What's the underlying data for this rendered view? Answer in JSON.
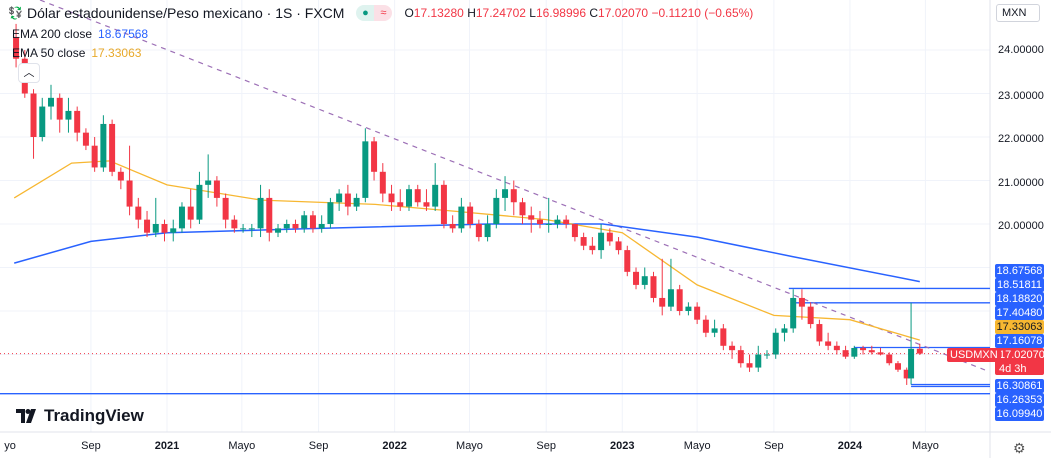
{
  "header": {
    "title": "Dólar estadounidense/Peso mexicano · 1S · FXCM",
    "ohlc": {
      "o_label": "O",
      "o": "17.13280",
      "h_label": "H",
      "h": "17.24702",
      "l_label": "L",
      "l": "16.98996",
      "c_label": "C",
      "c": "17.02070",
      "change": "−0.11210 (−0.65%)"
    },
    "indicators": [
      {
        "label": "EMA 200 close",
        "value": "18.67568",
        "color": "#2962ff"
      },
      {
        "label": "EMA 50 close",
        "value": "17.33063",
        "color": "#f7b731"
      }
    ],
    "currency_button": "MXN",
    "collapse_icon": "chevron-up-icon"
  },
  "price_axis": {
    "ticks": [
      "24.00000",
      "23.00000",
      "22.00000",
      "21.00000",
      "20.00000"
    ],
    "labels": [
      {
        "text": "18.67568",
        "color": "#2962ff"
      },
      {
        "text": "18.51811",
        "color": "#2962ff"
      },
      {
        "text": "18.18820",
        "color": "#2962ff"
      },
      {
        "text": "17.40480",
        "color": "#2962ff"
      },
      {
        "text": "17.33063",
        "color": "#f7b731"
      },
      {
        "text": "17.16078",
        "color": "#2962ff"
      },
      {
        "text": "17.02070",
        "color": "#f23645"
      },
      {
        "text": "16.30861",
        "color": "#2962ff"
      },
      {
        "text": "16.26353",
        "color": "#2962ff"
      },
      {
        "text": "16.09940",
        "color": "#2962ff"
      }
    ],
    "countdown": "4d 3h",
    "symbol_label": "USDMXN"
  },
  "time_axis": [
    {
      "text": "yo",
      "year": false
    },
    {
      "text": "Sep",
      "year": false
    },
    {
      "text": "2021",
      "year": true
    },
    {
      "text": "Mayo",
      "year": false
    },
    {
      "text": "Sep",
      "year": false
    },
    {
      "text": "2022",
      "year": true
    },
    {
      "text": "Mayo",
      "year": false
    },
    {
      "text": "Sep",
      "year": false
    },
    {
      "text": "2023",
      "year": true
    },
    {
      "text": "Mayo",
      "year": false
    },
    {
      "text": "Sep",
      "year": false
    },
    {
      "text": "2024",
      "year": true
    },
    {
      "text": "Mayo",
      "year": false
    }
  ],
  "branding": "TradingView",
  "chart_data": {
    "type": "candlestick",
    "symbol": "USDMXN",
    "interval": "1S",
    "colors": {
      "up": "#089981",
      "down": "#f23645",
      "ema200": "#2962ff",
      "ema50": "#f7b731",
      "levels": "#2962ff",
      "trendline": "#9c6fb6"
    },
    "ylim": [
      16.0,
      24.5
    ],
    "candles": [
      [
        "2020-05-04",
        24.3,
        24.6,
        23.6,
        23.8
      ],
      [
        "2020-05-18",
        23.8,
        24.0,
        22.9,
        23.0
      ],
      [
        "2020-06-01",
        23.0,
        23.1,
        21.5,
        22.0
      ],
      [
        "2020-06-15",
        22.0,
        22.9,
        21.9,
        22.7
      ],
      [
        "2020-06-29",
        22.7,
        23.2,
        22.4,
        22.9
      ],
      [
        "2020-07-13",
        22.9,
        23.0,
        22.1,
        22.4
      ],
      [
        "2020-07-27",
        22.4,
        22.9,
        22.1,
        22.6
      ],
      [
        "2020-08-10",
        22.6,
        22.7,
        21.9,
        22.1
      ],
      [
        "2020-08-24",
        22.1,
        22.2,
        21.7,
        21.8
      ],
      [
        "2020-09-07",
        21.8,
        22.0,
        21.2,
        21.3
      ],
      [
        "2020-09-21",
        21.3,
        22.5,
        21.2,
        22.3
      ],
      [
        "2020-10-05",
        22.3,
        22.4,
        21.1,
        21.2
      ],
      [
        "2020-10-19",
        21.2,
        21.3,
        20.8,
        21.0
      ],
      [
        "2020-11-02",
        21.0,
        21.8,
        20.2,
        20.4
      ],
      [
        "2020-11-16",
        20.4,
        20.6,
        19.9,
        20.1
      ],
      [
        "2020-11-30",
        20.1,
        20.3,
        19.7,
        19.8
      ],
      [
        "2020-12-14",
        19.8,
        20.6,
        19.7,
        20.0
      ],
      [
        "2020-12-28",
        20.0,
        20.1,
        19.6,
        19.8
      ],
      [
        "2021-01-11",
        19.8,
        20.1,
        19.6,
        19.9
      ],
      [
        "2021-01-25",
        19.9,
        20.5,
        19.8,
        20.4
      ],
      [
        "2021-02-08",
        20.4,
        20.8,
        19.9,
        20.1
      ],
      [
        "2021-02-22",
        20.1,
        21.2,
        20.0,
        20.9
      ],
      [
        "2021-03-08",
        20.9,
        21.6,
        20.6,
        21.0
      ],
      [
        "2021-03-22",
        21.0,
        21.1,
        20.4,
        20.6
      ],
      [
        "2021-04-05",
        20.6,
        20.7,
        19.9,
        20.1
      ],
      [
        "2021-04-19",
        20.1,
        20.2,
        19.8,
        19.9
      ],
      [
        "2021-05-03",
        19.9,
        20.0,
        19.8,
        19.9
      ],
      [
        "2021-05-17",
        19.9,
        20.0,
        19.7,
        19.9
      ],
      [
        "2021-05-31",
        19.9,
        20.9,
        19.7,
        20.6
      ],
      [
        "2021-06-14",
        20.6,
        20.8,
        19.6,
        19.8
      ],
      [
        "2021-06-28",
        19.8,
        20.0,
        19.7,
        19.9
      ],
      [
        "2021-07-12",
        19.9,
        20.1,
        19.8,
        20.0
      ],
      [
        "2021-07-26",
        20.0,
        20.1,
        19.8,
        19.9
      ],
      [
        "2021-08-09",
        19.9,
        20.3,
        19.8,
        20.2
      ],
      [
        "2021-08-23",
        20.2,
        20.3,
        19.8,
        19.9
      ],
      [
        "2021-09-06",
        19.9,
        20.2,
        19.8,
        20.0
      ],
      [
        "2021-09-20",
        20.0,
        20.6,
        19.9,
        20.5
      ],
      [
        "2021-10-04",
        20.5,
        20.8,
        20.3,
        20.7
      ],
      [
        "2021-10-18",
        20.7,
        20.9,
        20.2,
        20.4
      ],
      [
        "2021-11-01",
        20.4,
        20.7,
        20.3,
        20.6
      ],
      [
        "2021-11-15",
        20.6,
        22.2,
        20.5,
        21.9
      ],
      [
        "2021-11-29",
        21.9,
        22.0,
        21.0,
        21.2
      ],
      [
        "2021-12-13",
        21.2,
        21.4,
        20.5,
        20.7
      ],
      [
        "2021-12-27",
        20.7,
        20.9,
        20.3,
        20.5
      ],
      [
        "2022-01-10",
        20.5,
        20.8,
        20.3,
        20.4
      ],
      [
        "2022-01-24",
        20.4,
        20.9,
        20.3,
        20.8
      ],
      [
        "2022-02-07",
        20.8,
        20.9,
        20.4,
        20.5
      ],
      [
        "2022-02-21",
        20.5,
        20.8,
        20.3,
        20.4
      ],
      [
        "2022-03-07",
        20.4,
        21.4,
        20.3,
        20.9
      ],
      [
        "2022-03-21",
        20.9,
        21.0,
        19.9,
        20.0
      ],
      [
        "2022-04-04",
        20.0,
        20.2,
        19.8,
        19.9
      ],
      [
        "2022-04-18",
        19.9,
        20.6,
        19.8,
        20.4
      ],
      [
        "2022-05-02",
        20.4,
        20.5,
        19.9,
        20.0
      ],
      [
        "2022-05-16",
        20.0,
        20.1,
        19.6,
        19.7
      ],
      [
        "2022-05-30",
        19.7,
        20.2,
        19.6,
        20.0
      ],
      [
        "2022-06-13",
        20.0,
        20.8,
        19.9,
        20.6
      ],
      [
        "2022-06-27",
        20.6,
        21.1,
        20.3,
        20.8
      ],
      [
        "2022-07-11",
        20.8,
        21.0,
        20.2,
        20.5
      ],
      [
        "2022-07-25",
        20.5,
        20.6,
        20.0,
        20.2
      ],
      [
        "2022-08-08",
        20.2,
        20.4,
        19.8,
        20.1
      ],
      [
        "2022-08-22",
        20.1,
        20.3,
        19.9,
        20.0
      ],
      [
        "2022-09-05",
        20.0,
        20.6,
        19.8,
        20.0
      ],
      [
        "2022-09-19",
        20.0,
        20.2,
        19.9,
        20.1
      ],
      [
        "2022-10-03",
        20.1,
        20.2,
        19.9,
        20.0
      ],
      [
        "2022-10-17",
        20.0,
        20.0,
        19.6,
        19.7
      ],
      [
        "2022-10-31",
        19.7,
        19.8,
        19.4,
        19.5
      ],
      [
        "2022-11-14",
        19.5,
        19.7,
        19.3,
        19.4
      ],
      [
        "2022-11-28",
        19.4,
        20.0,
        19.2,
        19.8
      ],
      [
        "2022-12-12",
        19.8,
        19.9,
        19.5,
        19.6
      ],
      [
        "2022-12-26",
        19.6,
        19.7,
        19.3,
        19.4
      ],
      [
        "2023-01-09",
        19.4,
        19.5,
        18.8,
        18.9
      ],
      [
        "2023-01-23",
        18.9,
        19.0,
        18.5,
        18.6
      ],
      [
        "2023-02-06",
        18.6,
        19.0,
        18.5,
        18.8
      ],
      [
        "2023-02-20",
        18.8,
        18.9,
        18.2,
        18.3
      ],
      [
        "2023-03-06",
        18.3,
        19.2,
        17.9,
        18.1
      ],
      [
        "2023-03-20",
        18.1,
        19.2,
        18.0,
        18.5
      ],
      [
        "2023-04-03",
        18.5,
        18.6,
        17.9,
        18.0
      ],
      [
        "2023-04-17",
        18.0,
        18.2,
        17.9,
        18.1
      ],
      [
        "2023-05-01",
        18.1,
        18.2,
        17.7,
        17.8
      ],
      [
        "2023-05-15",
        17.8,
        17.9,
        17.4,
        17.5
      ],
      [
        "2023-05-29",
        17.5,
        17.8,
        17.4,
        17.6
      ],
      [
        "2023-06-12",
        17.6,
        17.7,
        17.1,
        17.2
      ],
      [
        "2023-06-26",
        17.2,
        17.3,
        16.9,
        17.1
      ],
      [
        "2023-07-10",
        17.1,
        17.2,
        16.7,
        16.8
      ],
      [
        "2023-07-24",
        16.8,
        17.0,
        16.6,
        16.7
      ],
      [
        "2023-08-07",
        16.7,
        17.2,
        16.6,
        17.0
      ],
      [
        "2023-08-21",
        17.0,
        17.1,
        16.9,
        17.0
      ],
      [
        "2023-09-04",
        17.0,
        17.6,
        16.9,
        17.5
      ],
      [
        "2023-09-18",
        17.5,
        17.7,
        17.3,
        17.6
      ],
      [
        "2023-10-02",
        17.6,
        18.5,
        17.5,
        18.3
      ],
      [
        "2023-10-16",
        18.3,
        18.5,
        17.8,
        18.1
      ],
      [
        "2023-10-30",
        18.1,
        18.2,
        17.6,
        17.7
      ],
      [
        "2023-11-13",
        17.7,
        17.8,
        17.2,
        17.3
      ],
      [
        "2023-11-27",
        17.3,
        17.5,
        17.1,
        17.2
      ],
      [
        "2023-12-11",
        17.2,
        17.3,
        17.0,
        17.1
      ],
      [
        "2023-12-25",
        17.1,
        17.2,
        16.9,
        16.95
      ],
      [
        "2024-01-08",
        16.95,
        17.2,
        16.9,
        17.15
      ],
      [
        "2024-01-22",
        17.15,
        17.2,
        17.0,
        17.1
      ],
      [
        "2024-02-05",
        17.1,
        17.2,
        17.0,
        17.05
      ],
      [
        "2024-02-19",
        17.05,
        17.15,
        16.98,
        17.0
      ],
      [
        "2024-03-04",
        17.0,
        17.05,
        16.75,
        16.8
      ],
      [
        "2024-03-18",
        16.8,
        16.85,
        16.6,
        16.65
      ],
      [
        "2024-04-01",
        16.65,
        16.7,
        16.3,
        16.45
      ],
      [
        "2024-04-08",
        16.45,
        18.19,
        16.31,
        17.13
      ],
      [
        "2024-04-22",
        17.1328,
        17.24702,
        16.98996,
        17.0207
      ]
    ],
    "ema200": [
      [
        "2020-05-01",
        19.1
      ],
      [
        "2020-09-01",
        19.6
      ],
      [
        "2021-01-01",
        19.8
      ],
      [
        "2021-09-01",
        19.9
      ],
      [
        "2022-06-01",
        20.0
      ],
      [
        "2022-12-01",
        20.0
      ],
      [
        "2023-05-01",
        19.7
      ],
      [
        "2023-10-01",
        19.25
      ],
      [
        "2024-04-22",
        18.67568
      ]
    ],
    "ema50": [
      [
        "2020-05-01",
        20.6
      ],
      [
        "2020-08-01",
        21.4
      ],
      [
        "2020-10-01",
        21.45
      ],
      [
        "2021-01-01",
        20.9
      ],
      [
        "2021-06-01",
        20.55
      ],
      [
        "2021-12-01",
        20.45
      ],
      [
        "2022-04-01",
        20.3
      ],
      [
        "2022-09-01",
        20.1
      ],
      [
        "2023-01-01",
        19.8
      ],
      [
        "2023-05-01",
        18.6
      ],
      [
        "2023-09-01",
        17.9
      ],
      [
        "2024-01-01",
        17.8
      ],
      [
        "2024-04-22",
        17.33063
      ]
    ],
    "levels": [
      18.51811,
      18.1882,
      17.16078,
      16.30861,
      16.26353,
      16.0994
    ],
    "last_price": 17.0207
  }
}
